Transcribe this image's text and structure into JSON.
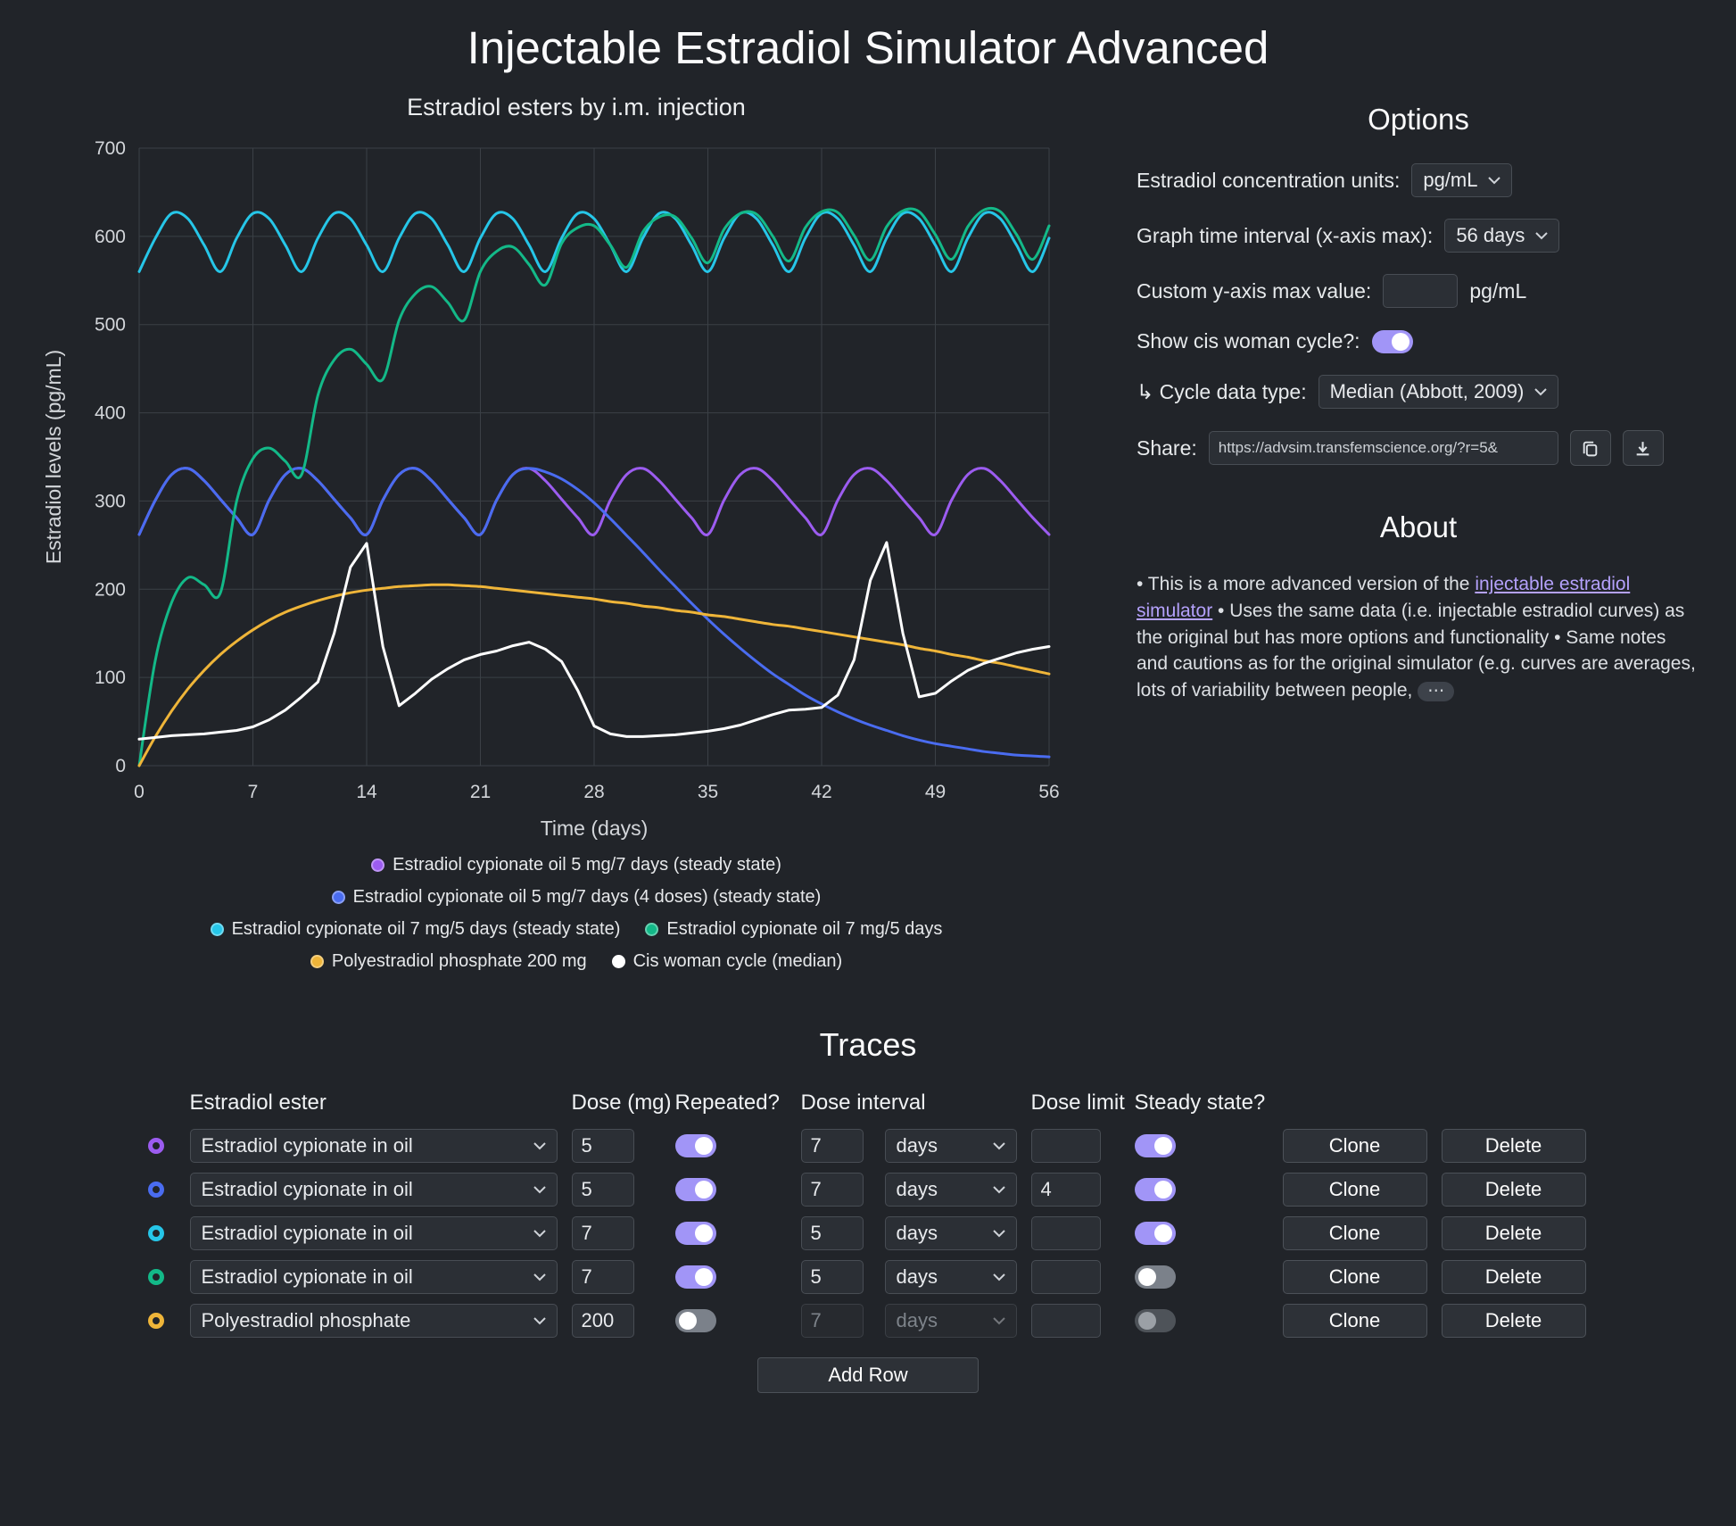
{
  "page": {
    "title": "Injectable Estradiol Simulator Advanced"
  },
  "theme": {
    "background": "#212429",
    "accent_toggle": "#a195f7",
    "link": "#b4a1fb"
  },
  "chart_data": {
    "type": "line",
    "title": "Estradiol esters by i.m. injection",
    "xlabel": "Time (days)",
    "ylabel": "Estradiol levels (pg/mL)",
    "xlim": [
      0,
      56
    ],
    "ylim": [
      0,
      700
    ],
    "x_ticks": [
      0,
      7,
      14,
      21,
      28,
      35,
      42,
      49,
      56
    ],
    "y_ticks": [
      0,
      100,
      200,
      300,
      400,
      500,
      600,
      700
    ],
    "grid": true,
    "legend_position": "bottom",
    "x_start": 0,
    "x_step": 1,
    "series": [
      {
        "name": "Estradiol cypionate oil 5 mg/7 days (steady state)",
        "color": "#9c5cf0",
        "smooth": true,
        "legend_row": 0,
        "short": "ec-5mg-7d-steady",
        "values": [
          262,
          301,
          330,
          337,
          323,
          302,
          281,
          262,
          301,
          330,
          337,
          323,
          302,
          281,
          262,
          301,
          330,
          337,
          323,
          302,
          281,
          262,
          301,
          330,
          337,
          323,
          302,
          281,
          262,
          301,
          330,
          337,
          323,
          302,
          281,
          262,
          301,
          330,
          337,
          323,
          302,
          281,
          262,
          301,
          330,
          337,
          323,
          302,
          281,
          262,
          301,
          330,
          337,
          323,
          302,
          281,
          262
        ]
      },
      {
        "name": "Estradiol cypionate oil 5 mg/7 days (4 doses) (steady state)",
        "color": "#4a6cf0",
        "smooth": true,
        "legend_row": 1,
        "short": "ec-5mg-7d-4doses",
        "values": [
          262,
          301,
          330,
          337,
          323,
          302,
          281,
          262,
          301,
          330,
          337,
          323,
          302,
          281,
          262,
          301,
          330,
          337,
          323,
          302,
          281,
          262,
          301,
          330,
          337,
          333,
          325,
          313,
          298,
          280,
          261,
          242,
          222,
          203,
          184,
          166,
          149,
          133,
          118,
          104,
          92,
          80,
          70,
          61,
          53,
          46,
          40,
          34,
          29,
          25,
          22,
          19,
          16,
          14,
          12,
          11,
          10
        ]
      },
      {
        "name": "Estradiol cypionate oil 7 mg/5 days (steady state)",
        "color": "#26c6e8",
        "smooth": true,
        "legend_row": 2,
        "short": "ec-7mg-5d-steady",
        "values": [
          560,
          598,
          626,
          620,
          590,
          560,
          598,
          626,
          620,
          590,
          560,
          598,
          626,
          620,
          590,
          560,
          598,
          626,
          620,
          590,
          560,
          598,
          626,
          620,
          590,
          560,
          598,
          626,
          620,
          590,
          560,
          598,
          626,
          620,
          590,
          560,
          598,
          626,
          620,
          590,
          560,
          598,
          626,
          620,
          590,
          560,
          598,
          626,
          620,
          590,
          560,
          598,
          626,
          620,
          590,
          560,
          598
        ]
      },
      {
        "name": "Estradiol cypionate oil 7 mg/5 days",
        "color": "#13b988",
        "smooth": true,
        "legend_row": 2,
        "short": "ec-7mg-5d",
        "values": [
          0,
          120,
          185,
          213,
          205,
          196,
          300,
          348,
          360,
          345,
          330,
          420,
          460,
          472,
          455,
          438,
          505,
          535,
          543,
          525,
          505,
          560,
          583,
          588,
          568,
          545,
          592,
          610,
          612,
          590,
          565,
          605,
          622,
          622,
          598,
          570,
          608,
          626,
          625,
          600,
          572,
          610,
          628,
          627,
          601,
          573,
          611,
          629,
          628,
          602,
          574,
          611,
          630,
          628,
          602,
          574,
          612
        ]
      },
      {
        "name": "Polyestradiol phosphate 200 mg",
        "color": "#efb539",
        "smooth": true,
        "legend_row": 3,
        "short": "pep-200mg",
        "values": [
          0,
          33,
          62,
          87,
          108,
          126,
          141,
          154,
          165,
          174,
          181,
          187,
          192,
          196,
          199,
          201,
          203,
          204,
          205,
          205,
          204,
          203,
          201,
          199,
          197,
          195,
          193,
          191,
          189,
          186,
          184,
          181,
          179,
          176,
          174,
          171,
          169,
          166,
          163,
          160,
          158,
          155,
          152,
          149,
          146,
          143,
          140,
          137,
          133,
          130,
          126,
          123,
          119,
          116,
          112,
          108,
          104
        ]
      },
      {
        "name": "Cis woman cycle (median)",
        "color": "#ffffff",
        "smooth": false,
        "legend_row": 3,
        "short": "cis-cycle",
        "values": [
          30,
          32,
          34,
          35,
          36,
          38,
          40,
          44,
          52,
          63,
          78,
          95,
          150,
          225,
          252,
          135,
          68,
          82,
          98,
          110,
          120,
          126,
          130,
          136,
          140,
          132,
          118,
          85,
          45,
          36,
          33,
          33,
          34,
          35,
          37,
          39,
          42,
          46,
          52,
          58,
          63,
          64,
          66,
          80,
          120,
          210,
          253,
          150,
          78,
          82,
          96,
          108,
          116,
          122,
          128,
          132,
          135
        ]
      }
    ]
  },
  "options": {
    "heading": "Options",
    "units": {
      "label": "Estradiol concentration units:",
      "value": "pg/mL"
    },
    "interval": {
      "label": "Graph time interval (x-axis max):",
      "value": "56 days"
    },
    "ymax": {
      "label": "Custom y-axis max value:",
      "value": "",
      "unit": "pg/mL"
    },
    "cycle": {
      "label": "Show cis woman cycle?:",
      "on": true
    },
    "cycle_type": {
      "label": "↳ Cycle data type:",
      "value": "Median (Abbott, 2009)"
    },
    "share": {
      "label": "Share:",
      "url": "https://advsim.transfemscience.org/?r=5&"
    }
  },
  "about": {
    "heading": "About",
    "text_before_link": "• This is a more advanced version of the ",
    "link_text": "injectable estradiol simulator",
    "text_after_link": " • Uses the same data (i.e. injectable estradiol curves) as the original but has more options and functionality • Same notes and cautions as for the original simulator (e.g. curves are averages, lots of variability between people,",
    "ellipsis": "⋯"
  },
  "traces": {
    "heading": "Traces",
    "columns": [
      "Estradiol ester",
      "Dose (mg)",
      "Repeated?",
      "Dose interval",
      "Dose limit",
      "Steady state?"
    ],
    "rows": [
      {
        "color": "#9c5cf0",
        "ester": "Estradiol cypionate in oil",
        "dose": "5",
        "repeated": true,
        "interval": "7",
        "interval_unit": "days",
        "limit": "",
        "steady": true,
        "interval_disabled": false,
        "steady_disabled": false
      },
      {
        "color": "#4a6cf0",
        "ester": "Estradiol cypionate in oil",
        "dose": "5",
        "repeated": true,
        "interval": "7",
        "interval_unit": "days",
        "limit": "4",
        "steady": true,
        "interval_disabled": false,
        "steady_disabled": false
      },
      {
        "color": "#26c6e8",
        "ester": "Estradiol cypionate in oil",
        "dose": "7",
        "repeated": true,
        "interval": "5",
        "interval_unit": "days",
        "limit": "",
        "steady": true,
        "interval_disabled": false,
        "steady_disabled": false
      },
      {
        "color": "#13b988",
        "ester": "Estradiol cypionate in oil",
        "dose": "7",
        "repeated": true,
        "interval": "5",
        "interval_unit": "days",
        "limit": "",
        "steady": false,
        "interval_disabled": false,
        "steady_disabled": false
      },
      {
        "color": "#efb539",
        "ester": "Polyestradiol phosphate",
        "dose": "200",
        "repeated": false,
        "interval": "7",
        "interval_unit": "days",
        "limit": "",
        "steady": false,
        "interval_disabled": true,
        "steady_disabled": true
      }
    ],
    "clone_label": "Clone",
    "delete_label": "Delete",
    "add_row_label": "Add Row"
  }
}
